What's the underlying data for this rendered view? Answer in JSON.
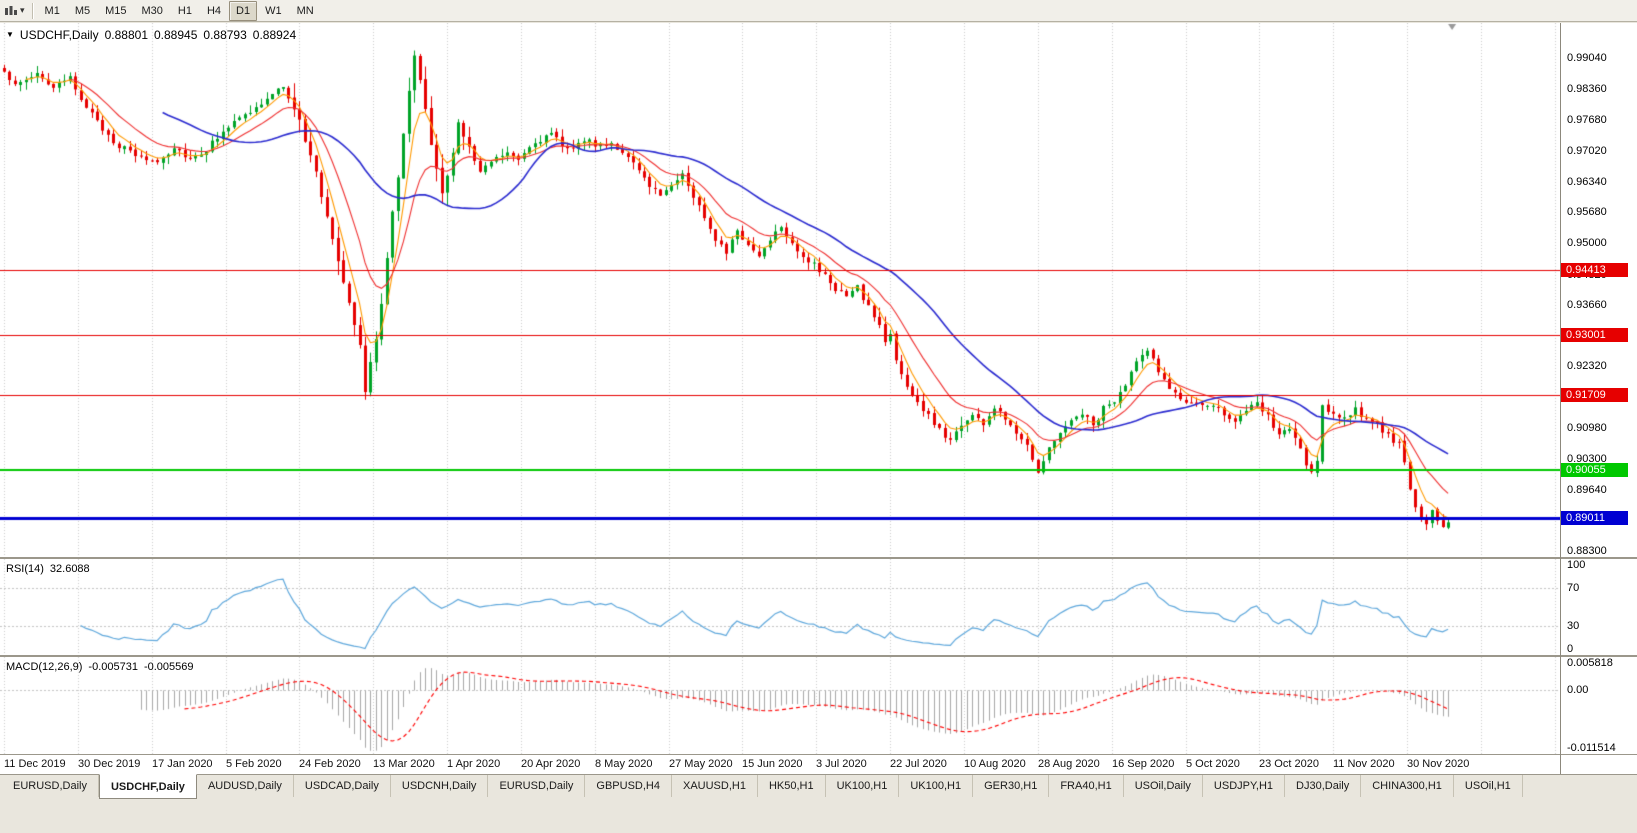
{
  "icons": {
    "nav_triangle": "▼",
    "dropdown_caret": "▾"
  },
  "toolbar": {
    "timeframes": [
      "M1",
      "M5",
      "M15",
      "M30",
      "H1",
      "H4",
      "D1",
      "W1",
      "MN"
    ],
    "active_timeframe": "D1"
  },
  "chart_data": {
    "type": "candlestick",
    "title": "USDCHF,Daily",
    "ohlc": {
      "open": "0.88801",
      "high": "0.88945",
      "low": "0.88793",
      "close": "0.88924"
    },
    "y_axis": {
      "ticks": [
        "0.99040",
        "0.98360",
        "0.97680",
        "0.97020",
        "0.96340",
        "0.95680",
        "0.95000",
        "0.94320",
        "0.93660",
        "0.92980",
        "0.92320",
        "0.91640",
        "0.90980",
        "0.90300",
        "0.89640",
        "0.88980",
        "0.88300"
      ],
      "price_max": 0.998,
      "price_min": 0.8817
    },
    "x_axis": {
      "dates": [
        "11 Dec 2019",
        "30 Dec 2019",
        "17 Jan 2020",
        "5 Feb 2020",
        "24 Feb 2020",
        "13 Mar 2020",
        "1 Apr 2020",
        "20 Apr 2020",
        "8 May 2020",
        "27 May 2020",
        "15 Jun 2020",
        "3 Jul 2020",
        "22 Jul 2020",
        "10 Aug 2020",
        "28 Aug 2020",
        "16 Sep 2020",
        "5 Oct 2020",
        "23 Oct 2020",
        "11 Nov 2020",
        "30 Nov 2020"
      ],
      "candles_per_label": 13.5
    },
    "num_candles": 265,
    "close_anchors": [
      [
        0,
        0.9868
      ],
      [
        3,
        0.9846
      ],
      [
        6,
        0.9872
      ],
      [
        9,
        0.9838
      ],
      [
        12,
        0.9858
      ],
      [
        14,
        0.9818
      ],
      [
        17,
        0.9762
      ],
      [
        21,
        0.9712
      ],
      [
        25,
        0.9686
      ],
      [
        28,
        0.9678
      ],
      [
        31,
        0.971
      ],
      [
        34,
        0.9686
      ],
      [
        37,
        0.9704
      ],
      [
        40,
        0.9748
      ],
      [
        44,
        0.9778
      ],
      [
        48,
        0.9812
      ],
      [
        51,
        0.9844
      ],
      [
        53,
        0.9798
      ],
      [
        55,
        0.9722
      ],
      [
        57,
        0.9652
      ],
      [
        59,
        0.9562
      ],
      [
        61,
        0.947
      ],
      [
        63,
        0.9382
      ],
      [
        64,
        0.933
      ],
      [
        65,
        0.927
      ],
      [
        66,
        0.919
      ],
      [
        67,
        0.9232
      ],
      [
        68,
        0.9292
      ],
      [
        69,
        0.9372
      ],
      [
        70,
        0.9482
      ],
      [
        71,
        0.9582
      ],
      [
        72,
        0.9652
      ],
      [
        73,
        0.9732
      ],
      [
        74,
        0.9832
      ],
      [
        75,
        0.9898
      ],
      [
        76,
        0.9858
      ],
      [
        77,
        0.979
      ],
      [
        78,
        0.9722
      ],
      [
        79,
        0.9652
      ],
      [
        80,
        0.9602
      ],
      [
        81,
        0.9642
      ],
      [
        82,
        0.9712
      ],
      [
        83,
        0.9758
      ],
      [
        85,
        0.97
      ],
      [
        87,
        0.9662
      ],
      [
        89,
        0.9682
      ],
      [
        92,
        0.97
      ],
      [
        94,
        0.9688
      ],
      [
        97,
        0.9722
      ],
      [
        100,
        0.9736
      ],
      [
        103,
        0.9706
      ],
      [
        106,
        0.9726
      ],
      [
        108,
        0.9714
      ],
      [
        111,
        0.972
      ],
      [
        114,
        0.9684
      ],
      [
        117,
        0.9642
      ],
      [
        120,
        0.9604
      ],
      [
        122,
        0.9632
      ],
      [
        124,
        0.965
      ],
      [
        126,
        0.9602
      ],
      [
        128,
        0.9558
      ],
      [
        130,
        0.9512
      ],
      [
        132,
        0.9484
      ],
      [
        134,
        0.9524
      ],
      [
        136,
        0.9498
      ],
      [
        138,
        0.9472
      ],
      [
        140,
        0.9512
      ],
      [
        142,
        0.954
      ],
      [
        144,
        0.9502
      ],
      [
        146,
        0.9472
      ],
      [
        148,
        0.9452
      ],
      [
        150,
        0.9428
      ],
      [
        152,
        0.9402
      ],
      [
        154,
        0.9384
      ],
      [
        156,
        0.9404
      ],
      [
        158,
        0.936
      ],
      [
        160,
        0.9322
      ],
      [
        161,
        0.9284
      ],
      [
        162,
        0.9302
      ],
      [
        163,
        0.9252
      ],
      [
        164,
        0.9212
      ],
      [
        165,
        0.9184
      ],
      [
        167,
        0.9152
      ],
      [
        169,
        0.9122
      ],
      [
        171,
        0.9094
      ],
      [
        173,
        0.9072
      ],
      [
        175,
        0.9108
      ],
      [
        177,
        0.9126
      ],
      [
        179,
        0.9108
      ],
      [
        181,
        0.914
      ],
      [
        183,
        0.912
      ],
      [
        185,
        0.9092
      ],
      [
        187,
        0.9062
      ],
      [
        189,
        0.9006
      ],
      [
        191,
        0.9052
      ],
      [
        193,
        0.9092
      ],
      [
        195,
        0.9112
      ],
      [
        197,
        0.9132
      ],
      [
        199,
        0.9102
      ],
      [
        201,
        0.9142
      ],
      [
        203,
        0.9152
      ],
      [
        205,
        0.9192
      ],
      [
        207,
        0.924
      ],
      [
        209,
        0.9272
      ],
      [
        211,
        0.9222
      ],
      [
        213,
        0.9182
      ],
      [
        215,
        0.9162
      ],
      [
        217,
        0.9148
      ],
      [
        219,
        0.9142
      ],
      [
        221,
        0.9152
      ],
      [
        223,
        0.9132
      ],
      [
        225,
        0.9112
      ],
      [
        227,
        0.9132
      ],
      [
        229,
        0.9152
      ],
      [
        231,
        0.9122
      ],
      [
        233,
        0.9082
      ],
      [
        235,
        0.9098
      ],
      [
        237,
        0.9052
      ],
      [
        238,
        0.9014
      ],
      [
        239,
        0.9002
      ],
      [
        240,
        0.9024
      ],
      [
        241,
        0.9142
      ],
      [
        243,
        0.9132
      ],
      [
        245,
        0.9118
      ],
      [
        247,
        0.9142
      ],
      [
        249,
        0.9112
      ],
      [
        251,
        0.9102
      ],
      [
        253,
        0.9082
      ],
      [
        255,
        0.9062
      ],
      [
        256,
        0.9022
      ],
      [
        257,
        0.8962
      ],
      [
        258,
        0.8922
      ],
      [
        259,
        0.89
      ],
      [
        260,
        0.889
      ],
      [
        261,
        0.8922
      ],
      [
        262,
        0.8892
      ],
      [
        263,
        0.888
      ],
      [
        264,
        0.88924
      ]
    ],
    "horizontal_lines": [
      {
        "price": 0.94413,
        "label": "0.94413",
        "color": "#E60000",
        "width": 1
      },
      {
        "price": 0.93001,
        "label": "0.93001",
        "color": "#E60000",
        "width": 1
      },
      {
        "price": 0.91709,
        "label": "0.91709",
        "color": "#E60000",
        "width": 1
      },
      {
        "price": 0.90055,
        "label": "0.90055",
        "color": "#00C800",
        "width": 2
      },
      {
        "price": 0.89011,
        "label": "0.89011",
        "color": "#0000D2",
        "width": 3
      }
    ],
    "moving_averages": [
      {
        "method": "ema",
        "period": 5,
        "color": "#FF9A00"
      },
      {
        "method": "ema",
        "period": 13,
        "color": "#F03030"
      },
      {
        "method": "sma",
        "period": 30,
        "color": "#2B2BD0"
      }
    ],
    "indicators": {
      "rsi": {
        "label": "RSI(14)",
        "period": 14,
        "value": "32.6088",
        "scale_ticks": [
          "100",
          "70",
          "30",
          "0"
        ],
        "levels": [
          70,
          30
        ],
        "color": "#5FA8DC"
      },
      "macd": {
        "label": "MACD(12,26,9)",
        "fast": 12,
        "slow": 26,
        "signal": 9,
        "value_main": "-0.005731",
        "value_signal": "-0.005569",
        "scale_ticks": [
          "0.005818",
          "0.00",
          "-0.011514"
        ],
        "scale_max": 0.005818,
        "scale_min": -0.011514,
        "histogram_color": "#A8A8A8",
        "signal_color": "#FF0000"
      }
    },
    "colors": {
      "bull": "#00A428",
      "bear": "#E60000",
      "grid": "#CDCDCD",
      "background": "#FFFFFF"
    }
  },
  "tabs": {
    "items": [
      {
        "label": "EURUSD,Daily",
        "active": false
      },
      {
        "label": "USDCHF,Daily",
        "active": true
      },
      {
        "label": "AUDUSD,Daily",
        "active": false
      },
      {
        "label": "USDCAD,Daily",
        "active": false
      },
      {
        "label": "USDCNH,Daily",
        "active": false
      },
      {
        "label": "EURUSD,Daily",
        "active": false
      },
      {
        "label": "GBPUSD,H4",
        "active": false
      },
      {
        "label": "XAUUSD,H1",
        "active": false
      },
      {
        "label": "HK50,H1",
        "active": false
      },
      {
        "label": "UK100,H1",
        "active": false
      },
      {
        "label": "UK100,H1",
        "active": false
      },
      {
        "label": "GER30,H1",
        "active": false
      },
      {
        "label": "FRA40,H1",
        "active": false
      },
      {
        "label": "USOil,Daily",
        "active": false
      },
      {
        "label": "USDJPY,H1",
        "active": false
      },
      {
        "label": "DJ30,Daily",
        "active": false
      },
      {
        "label": "CHINA300,H1",
        "active": false
      },
      {
        "label": "USOil,H1",
        "active": false
      }
    ]
  }
}
